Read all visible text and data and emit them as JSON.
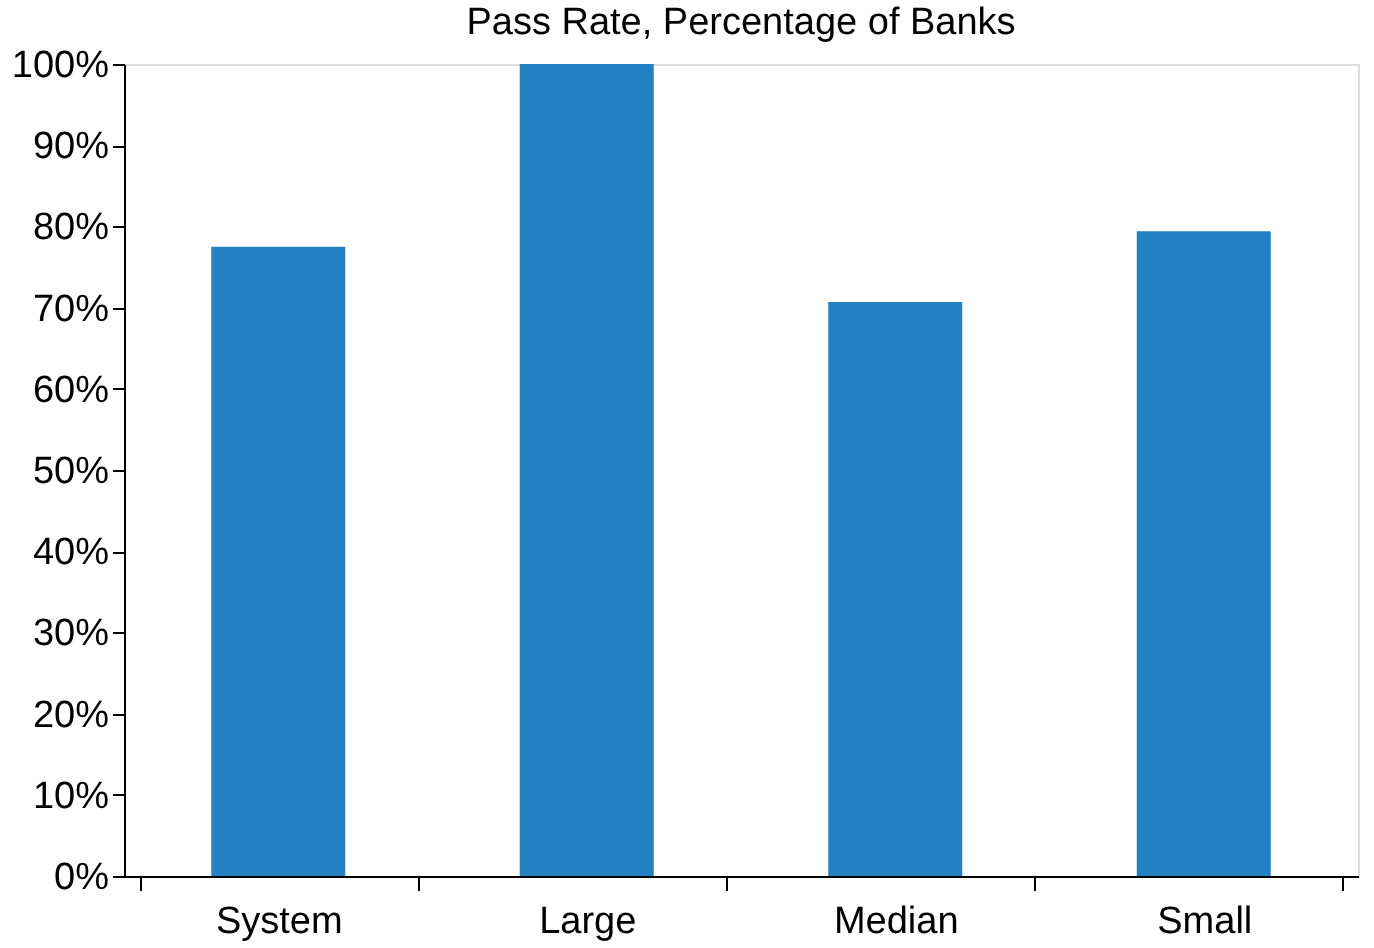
{
  "chart_data": {
    "type": "bar",
    "title": "Pass Rate, Percentage of Banks",
    "categories": [
      "System",
      "Large",
      "Median",
      "Small"
    ],
    "values": [
      77.5,
      100,
      70.7,
      79.4
    ],
    "color": "#2381c3",
    "ylim": [
      0,
      100
    ],
    "yticks": [
      {
        "value": 0,
        "label": "0%"
      },
      {
        "value": 10,
        "label": "10%"
      },
      {
        "value": 20,
        "label": "20%"
      },
      {
        "value": 30,
        "label": "30%"
      },
      {
        "value": 40,
        "label": "40%"
      },
      {
        "value": 50,
        "label": "50%"
      },
      {
        "value": 60,
        "label": "60%"
      },
      {
        "value": 70,
        "label": "70%"
      },
      {
        "value": 80,
        "label": "80%"
      },
      {
        "value": 90,
        "label": "90%"
      },
      {
        "value": 100,
        "label": "100%"
      }
    ],
    "grid": false
  }
}
